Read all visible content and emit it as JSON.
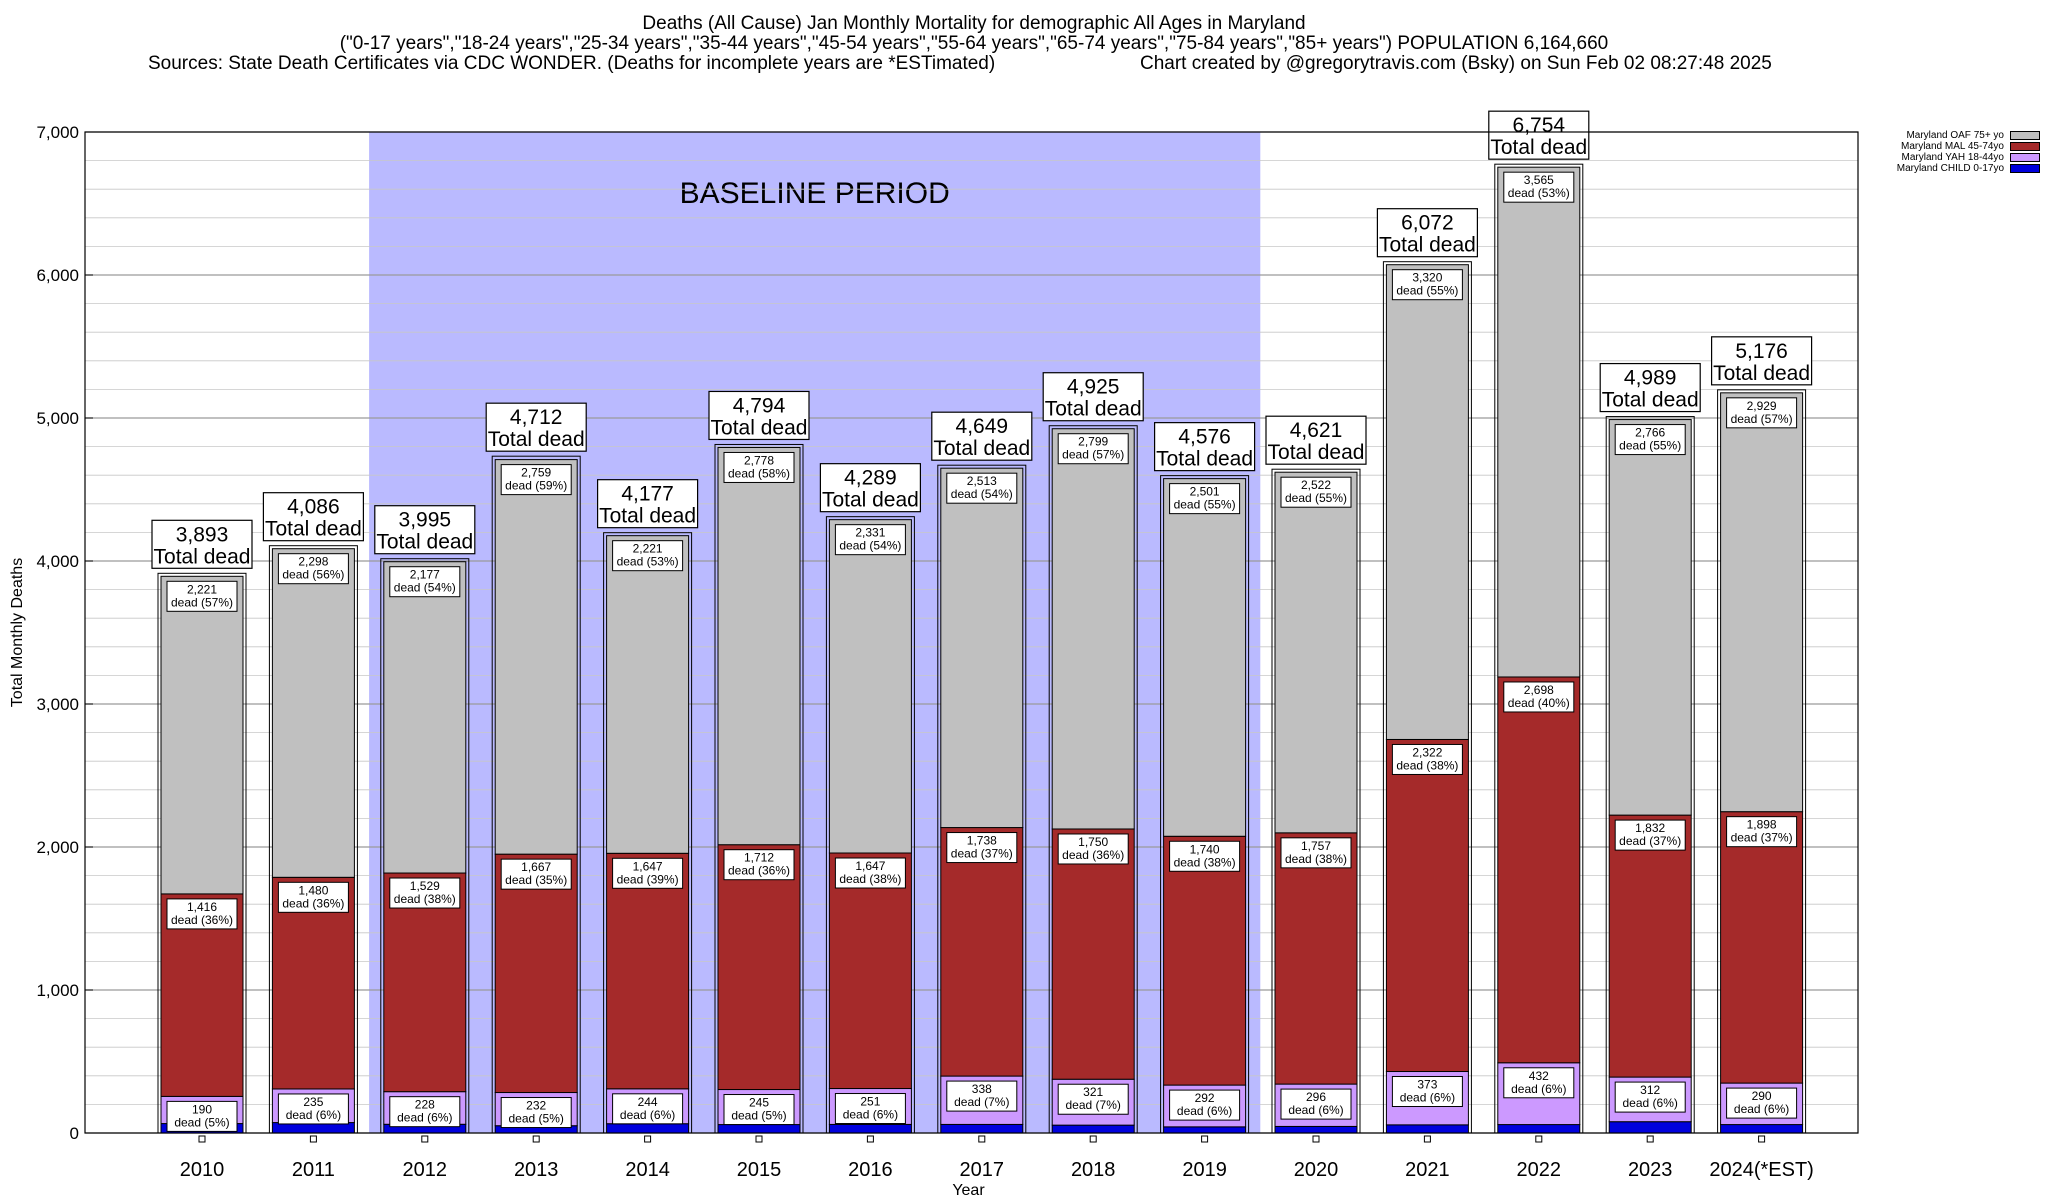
{
  "header": {
    "title": "Deaths (All Cause) Jan Monthly Mortality for demographic All Ages in Maryland",
    "subtitle": "(\"0-17 years\",\"18-24 years\",\"25-34 years\",\"35-44 years\",\"45-54 years\",\"55-64 years\",\"65-74 years\",\"75-84 years\",\"85+ years\") POPULATION 6,164,660",
    "sources": "Sources: State Death Certificates via CDC WONDER. (Deaths for incomplete years are *ESTimated)",
    "credit": "Chart created by @gregorytravis.com (Bsky) on Sun Feb 02 08:27:48 2025"
  },
  "chart_data": {
    "type": "bar",
    "stacked": true,
    "ylabel": "Total Monthly Deaths",
    "xlabel": "Year",
    "ylim": [
      0,
      7000
    ],
    "yticks": [
      "0",
      "1,000",
      "2,000",
      "3,000",
      "4,000",
      "5,000",
      "6,000",
      "7,000"
    ],
    "ytick_values": [
      0,
      1000,
      2000,
      3000,
      4000,
      5000,
      6000,
      7000
    ],
    "grid": true,
    "legend_position": "top-right",
    "categories": [
      "2010",
      "2011",
      "2012",
      "2013",
      "2014",
      "2015",
      "2016",
      "2017",
      "2018",
      "2019",
      "2020",
      "2021",
      "2022",
      "2023",
      "2024(*EST)"
    ],
    "baseline_period": {
      "label": "BASELINE PERIOD",
      "from": "2012",
      "to": "2019",
      "color": "#babaff"
    },
    "series": [
      {
        "name": "Maryland CHILD 0-17yo",
        "color": "#0000dd",
        "values": [
          66,
          73,
          61,
          51,
          65,
          59,
          60,
          60,
          55,
          43,
          46,
          57,
          59,
          79,
          59
        ]
      },
      {
        "name": "Maryland YAH 18-44yo",
        "color": "#cc99ff",
        "values": [
          190,
          235,
          228,
          232,
          244,
          245,
          251,
          338,
          321,
          292,
          296,
          373,
          432,
          312,
          290
        ],
        "labels": [
          "190\ndead (5%)",
          "235\ndead (6%)",
          "228\ndead (6%)",
          "232\ndead (5%)",
          "244\ndead (6%)",
          "245\ndead (5%)",
          "251\ndead (6%)",
          "338\ndead (7%)",
          "321\ndead (7%)",
          "292\ndead (6%)",
          "296\ndead (6%)",
          "373\ndead (6%)",
          "432\ndead (6%)",
          "312\ndead (6%)",
          "290\ndead (6%)"
        ]
      },
      {
        "name": "Maryland MAL 45-74yo",
        "color": "#a52a2a",
        "values": [
          1416,
          1480,
          1529,
          1667,
          1647,
          1712,
          1647,
          1738,
          1750,
          1740,
          1757,
          2322,
          2698,
          1832,
          1898
        ],
        "labels": [
          "1,416\ndead (36%)",
          "1,480\ndead (36%)",
          "1,529\ndead (38%)",
          "1,667\ndead (35%)",
          "1,647\ndead (39%)",
          "1,712\ndead (36%)",
          "1,647\ndead (38%)",
          "1,738\ndead (37%)",
          "1,750\ndead (36%)",
          "1,740\ndead (38%)",
          "1,757\ndead (38%)",
          "2,322\ndead (38%)",
          "2,698\ndead (40%)",
          "1,832\ndead (37%)",
          "1,898\ndead (37%)"
        ]
      },
      {
        "name": "Maryland OAF 75+ yo",
        "color": "#c0c0c0",
        "values": [
          2221,
          2298,
          2177,
          2759,
          2221,
          2778,
          2331,
          2513,
          2799,
          2501,
          2522,
          3320,
          3565,
          2766,
          2929
        ],
        "labels": [
          "2,221\ndead (57%)",
          "2,298\ndead (56%)",
          "2,177\ndead (54%)",
          "2,759\ndead (59%)",
          "2,221\ndead (53%)",
          "2,778\ndead (58%)",
          "2,331\ndead (54%)",
          "2,513\ndead (54%)",
          "2,799\ndead (57%)",
          "2,501\ndead (55%)",
          "2,522\ndead (55%)",
          "3,320\ndead (55%)",
          "3,565\ndead (53%)",
          "2,766\ndead (55%)",
          "2,929\ndead (57%)"
        ]
      }
    ],
    "totals": [
      3893,
      4086,
      3995,
      4712,
      4177,
      4794,
      4289,
      4649,
      4925,
      4576,
      4621,
      6072,
      6754,
      4989,
      5176
    ],
    "total_labels": [
      "3,893",
      "4,086",
      "3,995",
      "4,712",
      "4,177",
      "4,794",
      "4,289",
      "4,649",
      "4,925",
      "4,576",
      "4,621",
      "6,072",
      "6,754",
      "4,989",
      "5,176"
    ],
    "total_suffix": "Total dead"
  }
}
